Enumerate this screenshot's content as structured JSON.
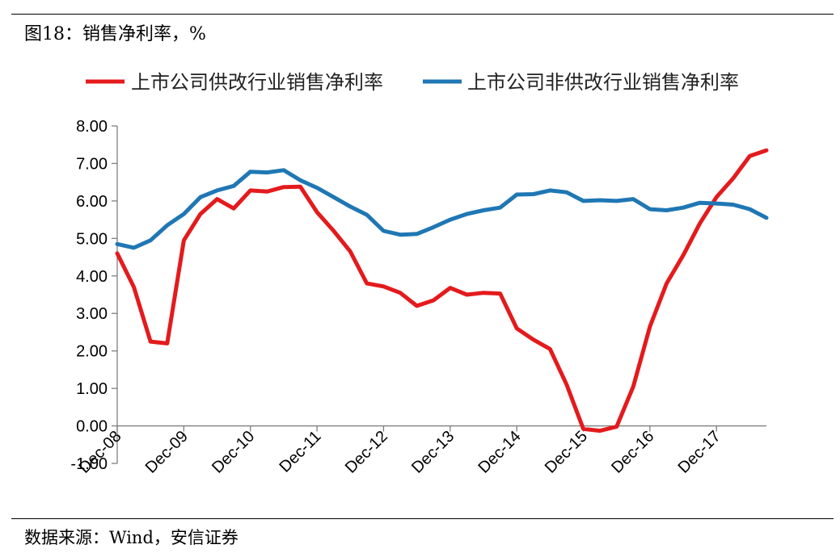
{
  "header": {
    "title": "图18：销售净利率，%"
  },
  "footer": {
    "source": "数据来源：Wind，安信证券"
  },
  "chart_data": {
    "type": "line",
    "title": "图18：销售净利率，%",
    "xlabel": "",
    "ylabel": "",
    "ylim": [
      -1.0,
      8.0
    ],
    "yticks": [
      -1.0,
      0.0,
      1.0,
      2.0,
      3.0,
      4.0,
      5.0,
      6.0,
      7.0,
      8.0
    ],
    "ytick_labels": [
      "-1.00",
      "0.00",
      "1.00",
      "2.00",
      "3.00",
      "4.00",
      "5.00",
      "6.00",
      "7.00",
      "8.00"
    ],
    "x_tick_labels": [
      "Dec-08",
      "Dec-09",
      "Dec-10",
      "Dec-11",
      "Dec-12",
      "Dec-13",
      "Dec-14",
      "Dec-15",
      "Dec-16",
      "Dec-17"
    ],
    "x_tick_index": [
      0,
      4,
      8,
      12,
      16,
      20,
      24,
      28,
      32,
      36
    ],
    "x": [
      "Dec-08",
      "Mar-09",
      "Jun-09",
      "Sep-09",
      "Dec-09",
      "Mar-10",
      "Jun-10",
      "Sep-10",
      "Dec-10",
      "Mar-11",
      "Jun-11",
      "Sep-11",
      "Dec-11",
      "Mar-12",
      "Jun-12",
      "Sep-12",
      "Dec-12",
      "Mar-13",
      "Jun-13",
      "Sep-13",
      "Dec-13",
      "Mar-14",
      "Jun-14",
      "Sep-14",
      "Dec-14",
      "Mar-15",
      "Jun-15",
      "Sep-15",
      "Dec-15",
      "Mar-16",
      "Jun-16",
      "Sep-16",
      "Dec-16",
      "Mar-17",
      "Jun-17",
      "Sep-17",
      "Dec-17",
      "Mar-18",
      "Jun-18",
      "Sep-18"
    ],
    "grid": false,
    "legend_position": "top",
    "series": [
      {
        "name": "上市公司供改行业销售净利率",
        "color": "#e41a1c",
        "values": [
          4.6,
          3.7,
          2.25,
          2.2,
          4.95,
          5.65,
          6.05,
          5.8,
          6.28,
          6.25,
          6.37,
          6.38,
          5.7,
          5.2,
          4.65,
          3.8,
          3.72,
          3.55,
          3.2,
          3.35,
          3.68,
          3.5,
          3.55,
          3.53,
          2.6,
          2.3,
          2.05,
          1.1,
          -0.08,
          -0.13,
          -0.02,
          1.05,
          2.65,
          3.8,
          4.55,
          5.4,
          6.1,
          6.6,
          7.2,
          7.35
        ]
      },
      {
        "name": "上市公司非供改行业销售净利率",
        "color": "#1f77b4",
        "values": [
          4.85,
          4.75,
          4.95,
          5.35,
          5.65,
          6.1,
          6.28,
          6.4,
          6.78,
          6.76,
          6.82,
          6.55,
          6.35,
          6.1,
          5.85,
          5.63,
          5.2,
          5.1,
          5.12,
          5.3,
          5.5,
          5.65,
          5.75,
          5.82,
          6.17,
          6.18,
          6.28,
          6.23,
          6.0,
          6.02,
          6.0,
          6.05,
          5.78,
          5.75,
          5.82,
          5.95,
          5.93,
          5.9,
          5.78,
          5.55
        ]
      }
    ]
  }
}
